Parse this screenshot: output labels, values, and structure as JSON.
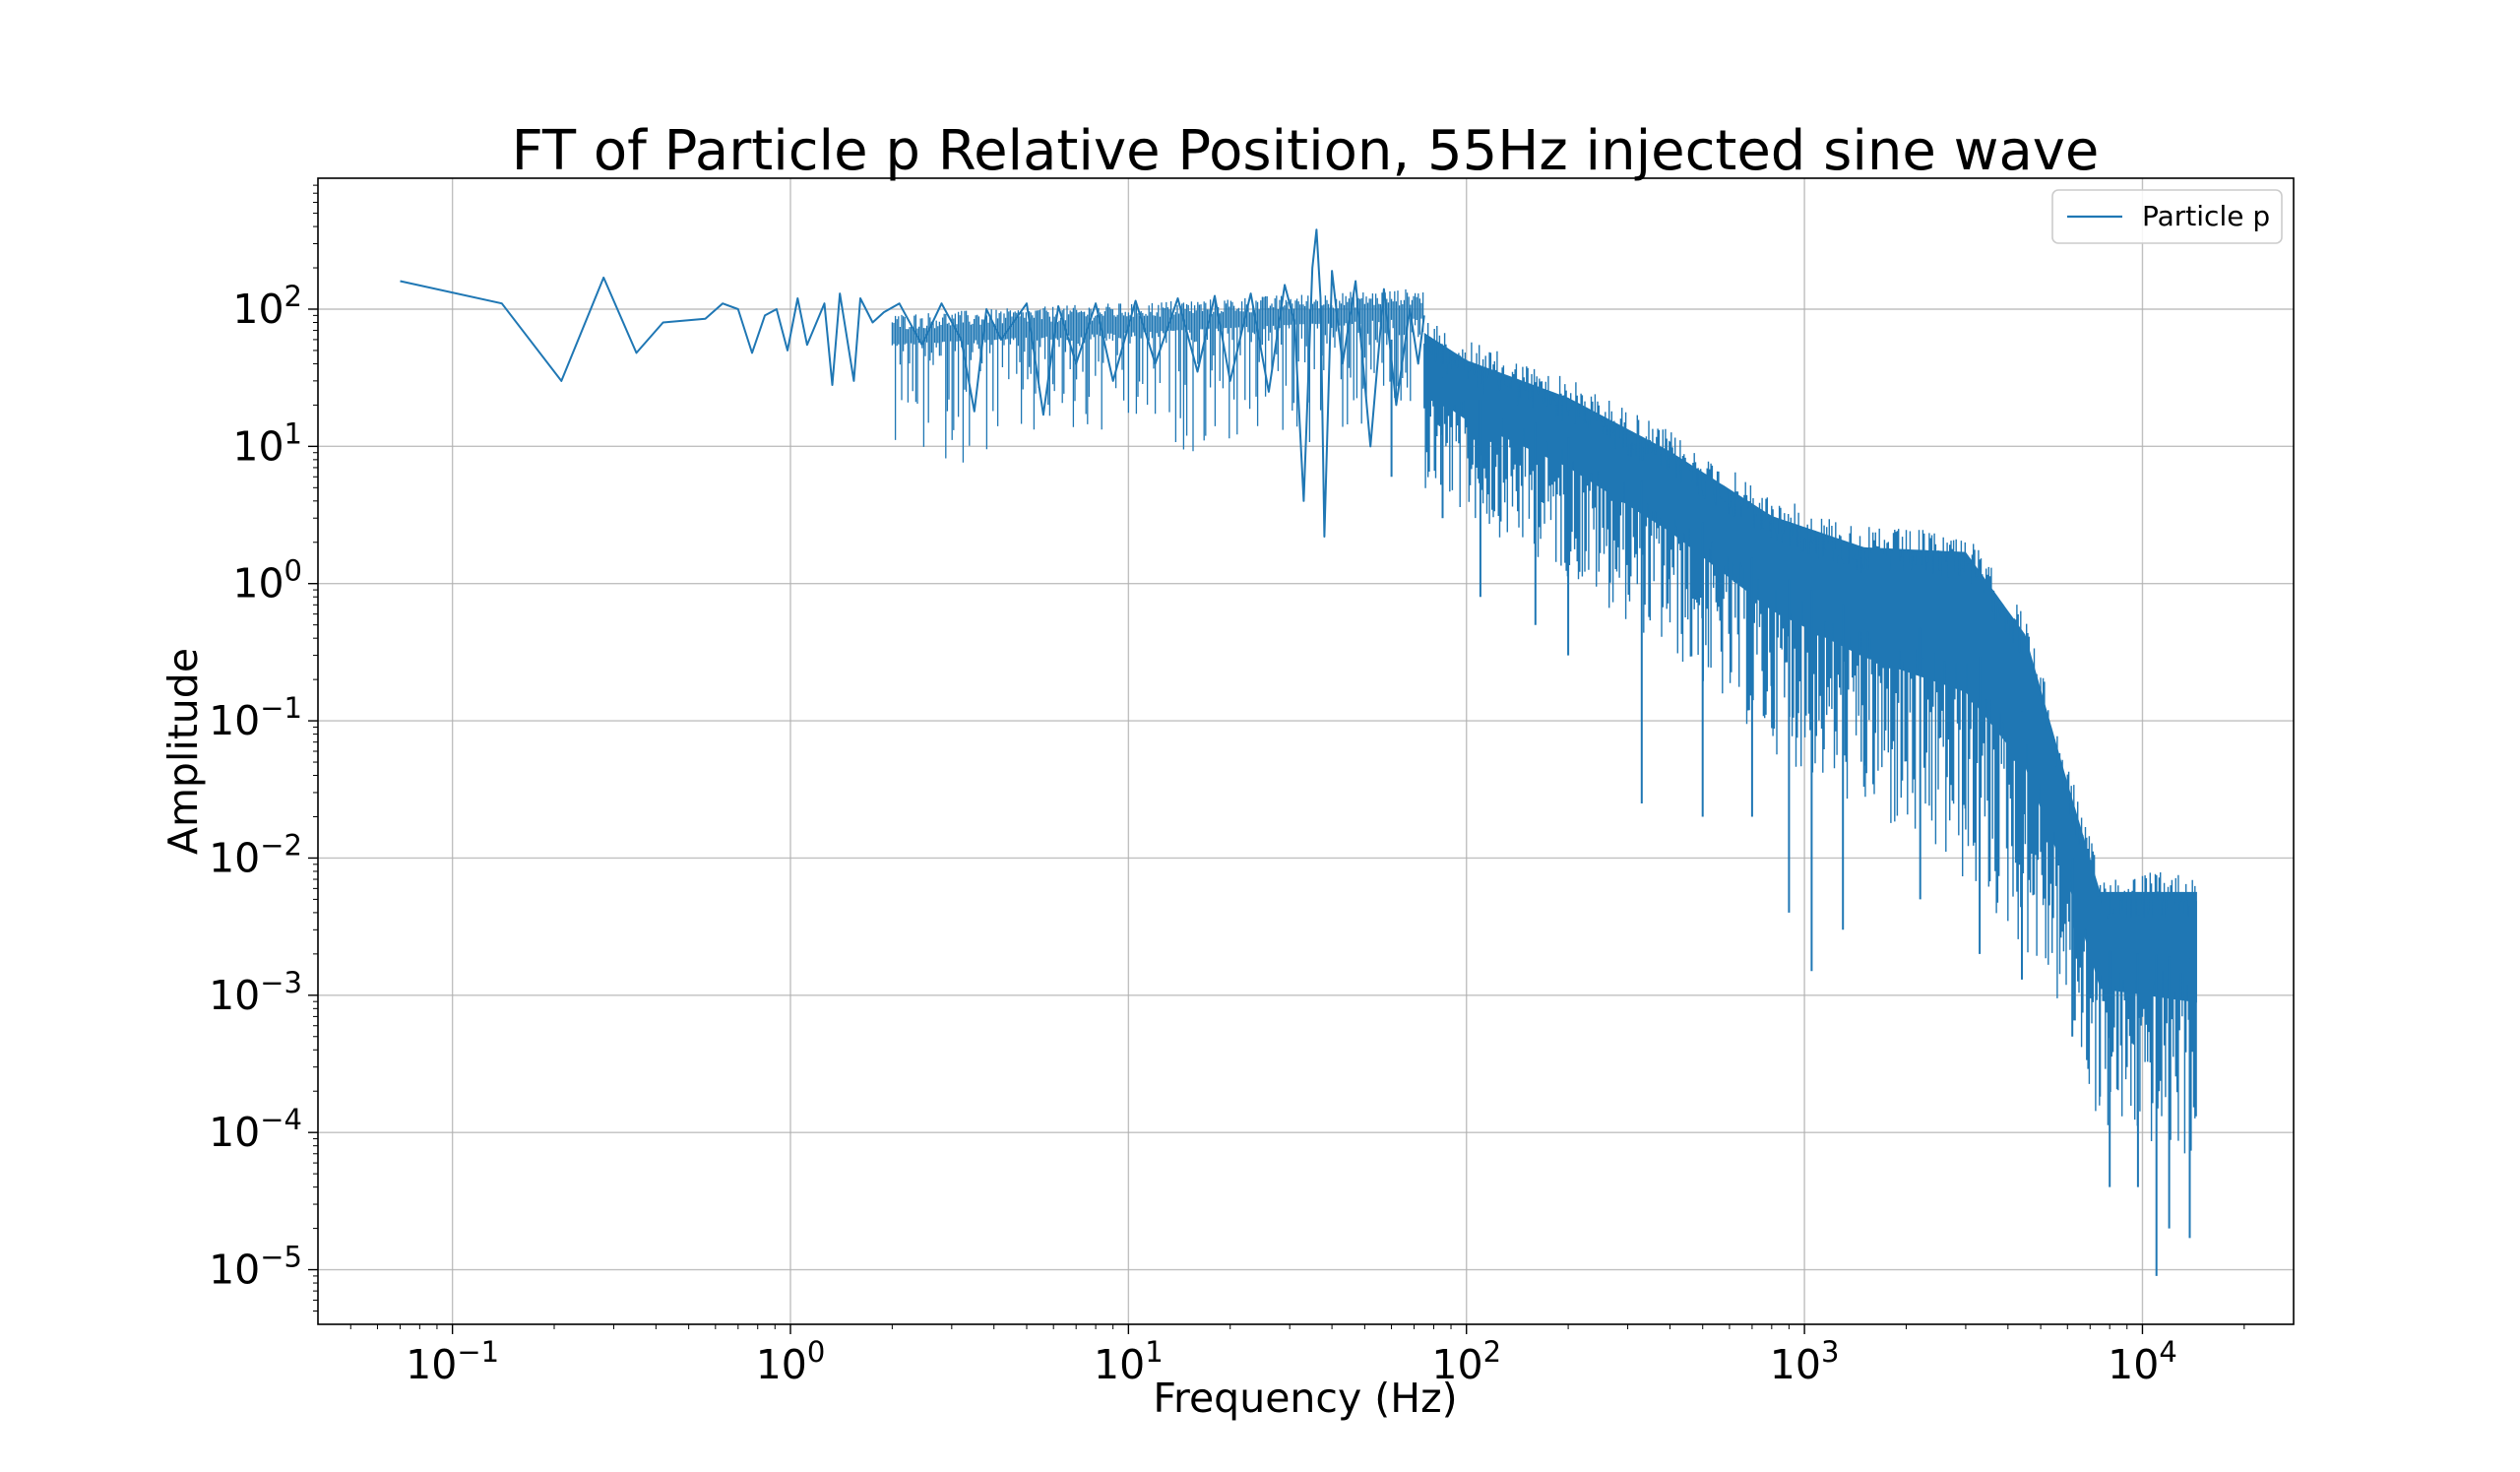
{
  "chart_data": {
    "type": "line",
    "title": "FT of Particle p Relative Position, 55Hz injected sine wave",
    "xlabel": "Frequency (Hz)",
    "ylabel": "Amplitude",
    "xscale": "log",
    "yscale": "log",
    "xlim": [
      0.04,
      28000
    ],
    "ylim": [
      4e-06,
      900
    ],
    "x_ticks": [
      {
        "base": "10",
        "exp": "−1",
        "value": 0.1
      },
      {
        "base": "10",
        "exp": "0",
        "value": 1
      },
      {
        "base": "10",
        "exp": "1",
        "value": 10
      },
      {
        "base": "10",
        "exp": "2",
        "value": 100
      },
      {
        "base": "10",
        "exp": "3",
        "value": 1000
      },
      {
        "base": "10",
        "exp": "4",
        "value": 10000
      }
    ],
    "y_ticks": [
      {
        "base": "10",
        "exp": "2",
        "value": 100
      },
      {
        "base": "10",
        "exp": "1",
        "value": 10
      },
      {
        "base": "10",
        "exp": "0",
        "value": 1
      },
      {
        "base": "10",
        "exp": "−1",
        "value": 0.1
      },
      {
        "base": "10",
        "exp": "−2",
        "value": 0.01
      },
      {
        "base": "10",
        "exp": "−3",
        "value": 0.001
      },
      {
        "base": "10",
        "exp": "−4",
        "value": 0.0001
      },
      {
        "base": "10",
        "exp": "−5",
        "value": 1e-05
      }
    ],
    "grid": true,
    "legend_position": "top-right",
    "series": [
      {
        "name": "Particle p",
        "color": "#1f77b4",
        "points_xy": [
          [
            0.07,
            160
          ],
          [
            0.14,
            110
          ],
          [
            0.21,
            30
          ],
          [
            0.28,
            170
          ],
          [
            0.35,
            48
          ],
          [
            0.42,
            80
          ],
          [
            0.56,
            85
          ],
          [
            0.63,
            110
          ],
          [
            0.7,
            100
          ],
          [
            0.77,
            48
          ],
          [
            0.84,
            90
          ],
          [
            0.91,
            100
          ],
          [
            0.98,
            50
          ],
          [
            1.05,
            120
          ],
          [
            1.12,
            55
          ],
          [
            1.26,
            110
          ],
          [
            1.33,
            28
          ],
          [
            1.4,
            130
          ],
          [
            1.54,
            30
          ],
          [
            1.61,
            120
          ],
          [
            1.75,
            80
          ],
          [
            1.89,
            95
          ],
          [
            2.1,
            110
          ],
          [
            2.45,
            55
          ],
          [
            2.8,
            110
          ],
          [
            3.2,
            60
          ],
          [
            3.5,
            18
          ],
          [
            3.8,
            100
          ],
          [
            4.2,
            60
          ],
          [
            5.0,
            110
          ],
          [
            5.6,
            17
          ],
          [
            6.2,
            105
          ],
          [
            7.0,
            40
          ],
          [
            8.0,
            110
          ],
          [
            9.0,
            30
          ],
          [
            10.5,
            115
          ],
          [
            12.0,
            40
          ],
          [
            14.0,
            120
          ],
          [
            16.0,
            35
          ],
          [
            18.0,
            125
          ],
          [
            20.0,
            30
          ],
          [
            23.0,
            130
          ],
          [
            26.0,
            25
          ],
          [
            29.0,
            150
          ],
          [
            31.0,
            80
          ],
          [
            33.0,
            4.0
          ],
          [
            35.0,
            200
          ],
          [
            36.0,
            380
          ],
          [
            37.0,
            120
          ],
          [
            38.0,
            2.2
          ],
          [
            40.0,
            190
          ],
          [
            43.0,
            40
          ],
          [
            47.0,
            160
          ],
          [
            52.0,
            10
          ],
          [
            57.0,
            140
          ],
          [
            62.0,
            20
          ],
          [
            68.0,
            100
          ],
          [
            72.0,
            40
          ],
          [
            75.0,
            90
          ]
        ],
        "segments": [
          {
            "x": [
              75,
              100
            ],
            "upper": [
              95,
              60
            ],
            "lower": [
              5,
              3
            ]
          },
          {
            "x": [
              100,
              200
            ],
            "upper": [
              60,
              32
            ],
            "lower": [
              3,
              1.1
            ]
          },
          {
            "x": [
              200,
              400
            ],
            "upper": [
              32,
              13
            ],
            "lower": [
              1.1,
              0.3
            ]
          },
          {
            "x": [
              400,
              800
            ],
            "upper": [
              13,
              4.4
            ],
            "lower": [
              0.3,
              0.06
            ]
          },
          {
            "x": [
              800,
              1500
            ],
            "upper": [
              4.4,
              2.6
            ],
            "lower": [
              0.06,
              0.02
            ]
          },
          {
            "x": [
              1500,
              3000
            ],
            "upper": [
              2.6,
              2.4
            ],
            "lower": [
              0.02,
              0.006
            ]
          },
          {
            "x": [
              3000,
              4500
            ],
            "upper": [
              2.4,
              0.6
            ],
            "lower": [
              0.006,
              0.002
            ]
          },
          {
            "x": [
              4500,
              6000
            ],
            "upper": [
              0.6,
              0.05
            ],
            "lower": [
              0.002,
              0.0006
            ]
          },
          {
            "x": [
              6000,
              7500
            ],
            "upper": [
              0.05,
              0.008
            ],
            "lower": [
              0.0006,
              0.0001
            ]
          },
          {
            "x": [
              7500,
              14500
            ],
            "upper": [
              0.008,
              0.008
            ],
            "lower": [
              0.0001,
              6e-05
            ]
          }
        ],
        "dips": [
          [
            60,
            6.0
          ],
          [
            85,
            3.0
          ],
          [
            110,
            0.8
          ],
          [
            160,
            0.5
          ],
          [
            200,
            0.3
          ],
          [
            330,
            0.025
          ],
          [
            500,
            0.02
          ],
          [
            700,
            0.02
          ],
          [
            900,
            0.004
          ],
          [
            1050,
            0.0015
          ],
          [
            1300,
            0.003
          ],
          [
            2200,
            0.005
          ],
          [
            3300,
            0.002
          ],
          [
            4400,
            0.0013
          ],
          [
            6200,
            0.0005
          ],
          [
            8000,
            4e-05
          ],
          [
            9700,
            4e-05
          ],
          [
            11000,
            9e-06
          ],
          [
            12000,
            2e-05
          ],
          [
            13800,
            1.7e-05
          ]
        ]
      }
    ]
  }
}
